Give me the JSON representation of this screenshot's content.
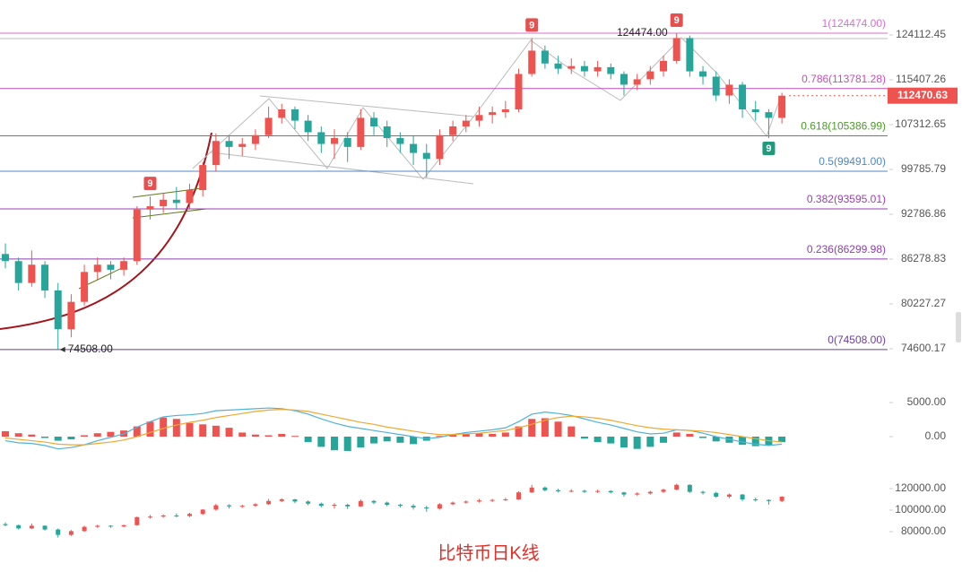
{
  "chart_data": [
    {
      "type": "candlestick",
      "title": "比特币日K线",
      "log_scale": true,
      "ylim": [
        70282,
        131355
      ],
      "yticks": [
        124112.45,
        115407.26,
        107312.65,
        99785.79,
        92786.86,
        86278.83,
        80227.27,
        74600.17
      ],
      "up_color": "#ef5350",
      "down_color": "#26a69a",
      "candles": [
        [
          87000,
          88500,
          85000,
          86000
        ],
        [
          86000,
          86500,
          82000,
          83000
        ],
        [
          83000,
          87500,
          82500,
          85500
        ],
        [
          85500,
          86000,
          81000,
          82000
        ],
        [
          82000,
          83000,
          74508,
          77000
        ],
        [
          77000,
          81500,
          76000,
          80500
        ],
        [
          80500,
          85500,
          80000,
          84500
        ],
        [
          84500,
          86500,
          83500,
          85500
        ],
        [
          85500,
          86000,
          83500,
          84800
        ],
        [
          84800,
          86500,
          84000,
          86000
        ],
        [
          86000,
          94000,
          85500,
          93500
        ],
        [
          93500,
          95500,
          92000,
          94000
        ],
        [
          94000,
          96000,
          93000,
          95000
        ],
        [
          95000,
          97000,
          93500,
          94500
        ],
        [
          94500,
          97500,
          93500,
          96500
        ],
        [
          96500,
          101000,
          95500,
          100500
        ],
        [
          100500,
          105800,
          99500,
          104500
        ],
        [
          104500,
          105500,
          101500,
          103500
        ],
        [
          103500,
          105000,
          102000,
          104000
        ],
        [
          104000,
          106500,
          103000,
          105500
        ],
        [
          105500,
          110500,
          105000,
          108500
        ],
        [
          108500,
          111000,
          107500,
          110000
        ],
        [
          110000,
          110500,
          106500,
          108000
        ],
        [
          108000,
          109000,
          104500,
          106000
        ],
        [
          106000,
          107000,
          102500,
          104000
        ],
        [
          104000,
          106500,
          101500,
          105000
        ],
        [
          105000,
          106000,
          101000,
          103500
        ],
        [
          103500,
          110000,
          103000,
          108500
        ],
        [
          108500,
          109500,
          105500,
          107000
        ],
        [
          107000,
          108000,
          103500,
          105000
        ],
        [
          105000,
          106000,
          102500,
          104000
        ],
        [
          104000,
          105500,
          100500,
          102500
        ],
        [
          102500,
          104000,
          98500,
          101500
        ],
        [
          101500,
          106500,
          100500,
          105500
        ],
        [
          105500,
          108000,
          104500,
          107000
        ],
        [
          107000,
          109000,
          106000,
          108000
        ],
        [
          108000,
          110500,
          107000,
          109000
        ],
        [
          109000,
          110500,
          107500,
          109500
        ],
        [
          109500,
          111500,
          108500,
          110000
        ],
        [
          110000,
          117500,
          109500,
          116500
        ],
        [
          116500,
          123500,
          116000,
          121000
        ],
        [
          121000,
          122000,
          117500,
          118500
        ],
        [
          118500,
          120000,
          116500,
          117500
        ],
        [
          117500,
          119500,
          116500,
          118000
        ],
        [
          118000,
          119000,
          116000,
          117000
        ],
        [
          117000,
          119000,
          116000,
          117800
        ],
        [
          117800,
          118500,
          115500,
          116500
        ],
        [
          116500,
          117000,
          112500,
          114500
        ],
        [
          114500,
          116500,
          113500,
          115500
        ],
        [
          115500,
          118000,
          114500,
          117000
        ],
        [
          117000,
          120000,
          116000,
          119000
        ],
        [
          119000,
          124474,
          118500,
          123500
        ],
        [
          123500,
          124000,
          116000,
          117000
        ],
        [
          117000,
          118000,
          114500,
          116000
        ],
        [
          116000,
          117000,
          111500,
          112500
        ],
        [
          112500,
          115500,
          111000,
          114500
        ],
        [
          114500,
          115000,
          108500,
          110000
        ],
        [
          110000,
          111500,
          108000,
          109500
        ],
        [
          109500,
          110000,
          105000,
          108500
        ],
        [
          108500,
          113000,
          107500,
          112470.63
        ]
      ],
      "last_price": 112470.63,
      "high_label": {
        "value": 124474,
        "label": "124474.00"
      },
      "low_label": {
        "value": 74508,
        "label": "74508.00"
      },
      "fib_levels": [
        {
          "label": "1(124474.00)",
          "value": 124474,
          "color": "#d66fcf"
        },
        {
          "label": "0.786(113781.28)",
          "value": 113781.28,
          "color": "#c24fb8"
        },
        {
          "label": "0.618(105386.99)",
          "value": 105386.99,
          "color": "#4c9a2a"
        },
        {
          "label": "0.5(99491.00)",
          "value": 99491,
          "color": "#4f86c6"
        },
        {
          "label": "0.382(93595.01)",
          "value": 93595.01,
          "color": "#9b3fb3"
        },
        {
          "label": "0.236(86299.98)",
          "value": 86299.98,
          "color": "#8d3fae"
        },
        {
          "label": "0(74508.00)",
          "value": 74508,
          "color": "#6b3fa0"
        }
      ],
      "td_marks": [
        "9",
        "9",
        "9",
        "9"
      ]
    },
    {
      "type": "macd",
      "ylim": [
        -3026,
        6184
      ],
      "yticks": [
        {
          "value": 5000,
          "label": "5000.00"
        },
        {
          "value": 0,
          "label": "0.00"
        }
      ],
      "up_color": "#ef5350",
      "down_color": "#26a69a",
      "histogram": [
        800,
        500,
        300,
        -200,
        -600,
        -400,
        200,
        500,
        700,
        900,
        1500,
        2200,
        2800,
        2600,
        2000,
        1800,
        1600,
        1300,
        600,
        300,
        200,
        400,
        100,
        -800,
        -1500,
        -2000,
        -2100,
        -1600,
        -1000,
        -700,
        -900,
        -1100,
        -600,
        100,
        300,
        400,
        500,
        400,
        600,
        1500,
        2600,
        2700,
        2200,
        1500,
        -300,
        -800,
        -1000,
        -1600,
        -1800,
        -1500,
        -900,
        600,
        400,
        -200,
        -700,
        -900,
        -1200,
        -1400,
        -1300,
        -800
      ],
      "series": [
        {
          "color": "#4fb3d9",
          "values": [
            -600,
            -900,
            -1000,
            -1300,
            -1800,
            -1600,
            -1200,
            -600,
            -100,
            400,
            1400,
            2200,
            2900,
            3100,
            3200,
            3400,
            3800,
            3900,
            4000,
            4100,
            4200,
            4100,
            3800,
            3300,
            2600,
            2000,
            1500,
            1200,
            900,
            600,
            300,
            0,
            -300,
            -100,
            300,
            600,
            800,
            1000,
            1300,
            2200,
            3300,
            3600,
            3400,
            3100,
            2600,
            2100,
            1700,
            1200,
            700,
            400,
            500,
            1000,
            900,
            500,
            0,
            -400,
            -800,
            -1100,
            -1300,
            -1100
          ]
        },
        {
          "color": "#f0a830",
          "values": [
            -200,
            -400,
            -600,
            -800,
            -1100,
            -1200,
            -1200,
            -1000,
            -800,
            -500,
            0,
            600,
            1200,
            1700,
            2100,
            2400,
            2800,
            3100,
            3400,
            3700,
            3900,
            4000,
            3900,
            3700,
            3300,
            2900,
            2500,
            2100,
            1800,
            1400,
            1100,
            800,
            500,
            300,
            300,
            400,
            500,
            700,
            900,
            1300,
            1800,
            2400,
            2800,
            3000,
            2900,
            2700,
            2400,
            2000,
            1600,
            1300,
            1100,
            1000,
            900,
            800,
            600,
            300,
            0,
            -300,
            -600,
            -800
          ]
        }
      ]
    },
    {
      "type": "candlestick",
      "ylim": [
        70000,
        132500
      ],
      "yticks": [
        {
          "value": 120000,
          "label": "120000.00"
        },
        {
          "value": 100000,
          "label": "100000.00"
        },
        {
          "value": 80000,
          "label": "80000.00"
        }
      ]
    }
  ]
}
